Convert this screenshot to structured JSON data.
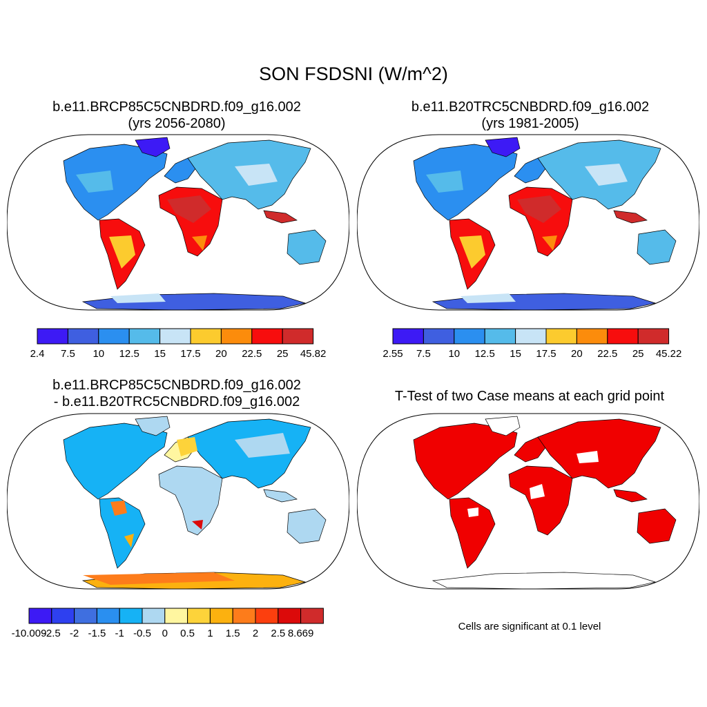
{
  "title": "SON FSDSNI (W/m^2)",
  "palettes": {
    "seq": [
      "#3d1af5",
      "#3f5fe0",
      "#2b8ff0",
      "#55bbea",
      "#c8e4f6",
      "#fccb2e",
      "#fc8c0c",
      "#f70d0d",
      "#d02b2b"
    ],
    "div": [
      "#3d1af5",
      "#2e40f0",
      "#3f6fe0",
      "#2a8ff0",
      "#16b2f5",
      "#aed8f1",
      "#fff6a0",
      "#fdd33a",
      "#fcb10f",
      "#fd7c1b",
      "#fc3f0e",
      "#dc0a0a",
      "#d02b2b"
    ],
    "sig": "#f00000"
  },
  "panels": [
    {
      "title_lines": [
        "b.e11.BRCP85C5CNBDRD.f09_g16.002",
        "(yrs 2056-2080)"
      ],
      "colorbar_labels": [
        "2.4",
        "7.5",
        "10",
        "12.5",
        "15",
        "17.5",
        "20",
        "22.5",
        "25",
        "45.82"
      ]
    },
    {
      "title_lines": [
        "b.e11.B20TRC5CNBDRD.f09_g16.002",
        "(yrs 1981-2005)"
      ],
      "colorbar_labels": [
        "2.55",
        "7.5",
        "10",
        "12.5",
        "15",
        "17.5",
        "20",
        "22.5",
        "25",
        "45.22"
      ]
    },
    {
      "title_lines": [
        "b.e11.BRCP85C5CNBDRD.f09_g16.002",
        "- b.e11.B20TRC5CNBDRD.f09_g16.002"
      ],
      "colorbar_labels": [
        "-10.009",
        "-2.5",
        "-2",
        "-1.5",
        "-1",
        "-0.5",
        "0",
        "0.5",
        "1",
        "1.5",
        "2",
        "2.5",
        "8.669"
      ]
    },
    {
      "title_lines": [
        "T-Test of two Case means at each grid point"
      ],
      "note": "Cells are significant at 0.1 level"
    }
  ]
}
